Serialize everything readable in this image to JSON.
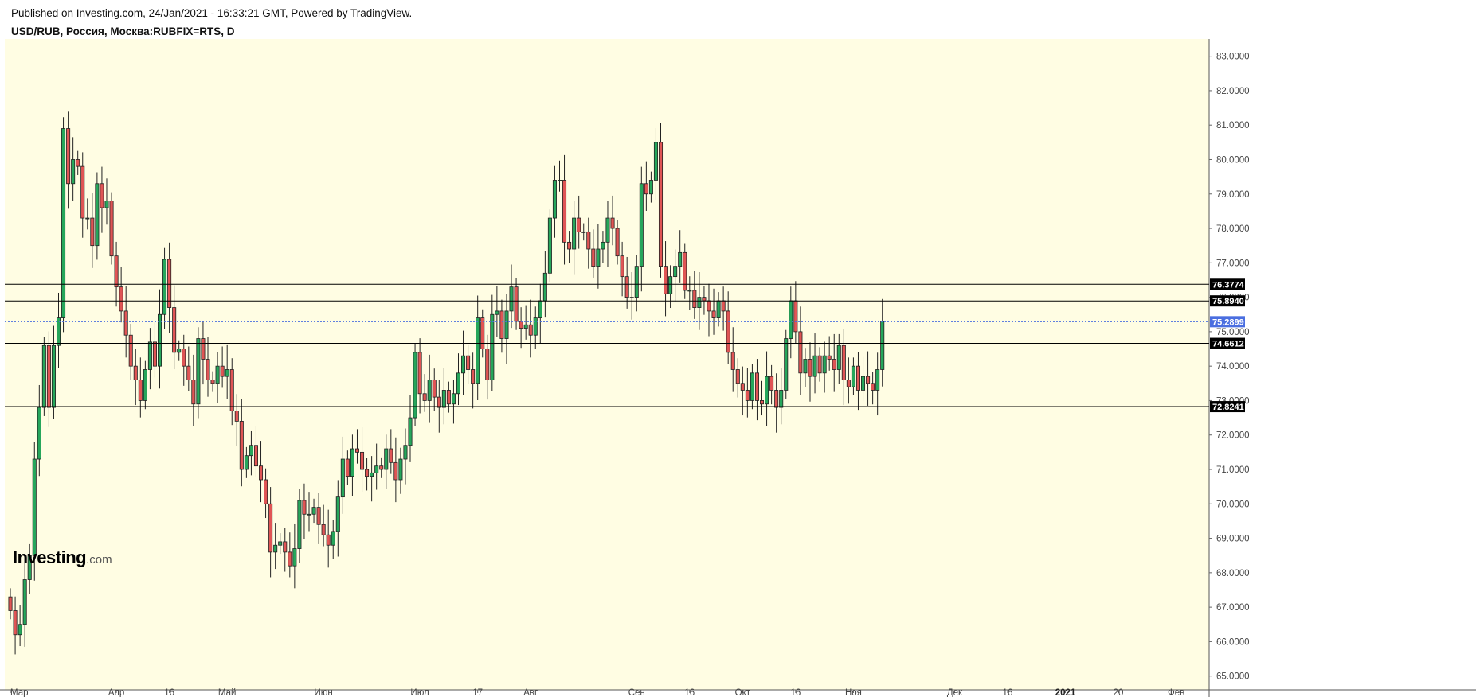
{
  "header": {
    "published": "Published on Investing.com, 24/Jan/2021 - 16:33:21 GMT, Powered by TradingView.",
    "symbol": "USD/RUB, Россия, Москва:RUBFIX=RTS, D"
  },
  "logo": {
    "brand": "Investing",
    "suffix": ".com"
  },
  "chart_data": {
    "type": "candlestick",
    "title": "USD/RUB, Россия, Москва:RUBFIX=RTS, D",
    "ylim": [
      64.6,
      83.5
    ],
    "y_ticks": [
      65,
      66,
      67,
      68,
      69,
      70,
      71,
      72,
      73,
      74,
      75,
      76,
      77,
      78,
      79,
      80,
      81,
      82,
      83
    ],
    "x_ticks": [
      {
        "label": "Мар",
        "index": 0
      },
      {
        "label": "Апр",
        "index": 22
      },
      {
        "label": "16",
        "index": 33
      },
      {
        "label": "Май",
        "index": 45
      },
      {
        "label": "Июн",
        "index": 65
      },
      {
        "label": "Июл",
        "index": 85
      },
      {
        "label": "17",
        "index": 97
      },
      {
        "label": "Авг",
        "index": 108
      },
      {
        "label": "Сен",
        "index": 130
      },
      {
        "label": "16",
        "index": 141
      },
      {
        "label": "Окт",
        "index": 152
      },
      {
        "label": "16",
        "index": 163
      },
      {
        "label": "Ноя",
        "index": 175
      },
      {
        "label": "Дек",
        "index": 196
      },
      {
        "label": "16",
        "index": 207
      },
      {
        "label": "2021",
        "index": 219,
        "bold": true
      },
      {
        "label": "20",
        "index": 230
      },
      {
        "label": "Фев",
        "index": 242
      }
    ],
    "x_slots": 250,
    "horizontal_levels": [
      {
        "value": 76.3774,
        "label": "76.3774",
        "style": "solid"
      },
      {
        "value": 75.894,
        "label": "75.8940",
        "style": "solid"
      },
      {
        "value": 74.6612,
        "label": "74.6612",
        "style": "solid"
      },
      {
        "value": 72.8241,
        "label": "72.8241",
        "style": "solid"
      }
    ],
    "last_price": {
      "value": 75.2899,
      "label": "75.2899"
    },
    "closes": [
      66.9,
      66.2,
      66.5,
      67.8,
      68.5,
      71.3,
      72.8,
      74.6,
      72.8,
      74.6,
      75.4,
      80.9,
      79.3,
      80.0,
      79.8,
      78.3,
      78.3,
      77.5,
      79.3,
      78.6,
      78.8,
      77.2,
      76.3,
      75.6,
      74.9,
      74.0,
      73.6,
      73.0,
      73.9,
      74.7,
      74.0,
      75.5,
      77.1,
      75.7,
      74.4,
      74.5,
      74.0,
      73.6,
      72.9,
      74.8,
      74.2,
      73.6,
      73.5,
      74.0,
      73.7,
      73.9,
      72.7,
      72.4,
      71.0,
      71.4,
      71.7,
      71.1,
      70.7,
      70.0,
      68.6,
      68.8,
      68.9,
      68.6,
      68.2,
      68.7,
      70.1,
      69.7,
      69.7,
      69.9,
      69.4,
      69.1,
      68.8,
      69.2,
      70.2,
      71.3,
      70.8,
      71.6,
      71.5,
      71.0,
      70.8,
      70.9,
      71.1,
      71.0,
      71.6,
      71.2,
      70.7,
      71.3,
      71.7,
      72.5,
      74.4,
      73.2,
      73.0,
      73.6,
      73.1,
      72.8,
      73.3,
      72.9,
      73.2,
      73.8,
      74.3,
      73.9,
      73.5,
      75.4,
      74.5,
      73.6,
      75.5,
      75.6,
      74.8,
      75.6,
      76.3,
      75.3,
      75.1,
      75.2,
      74.9,
      75.4,
      75.9,
      76.7,
      78.3,
      79.4,
      79.4,
      77.6,
      77.4,
      78.3,
      77.9,
      77.9,
      77.4,
      76.9,
      77.4,
      77.6,
      78.3,
      78.0,
      77.2,
      76.6,
      76.0,
      76.0,
      76.9,
      79.3,
      79.0,
      79.4,
      80.5,
      76.9,
      76.1,
      76.6,
      76.9,
      77.3,
      76.2,
      76.2,
      75.7,
      76.0,
      75.9,
      75.6,
      75.4,
      75.9,
      75.6,
      74.4,
      73.9,
      73.5,
      73.3,
      73.0,
      73.8,
      73.0,
      72.9,
      73.7,
      73.3,
      72.8,
      73.3,
      74.8,
      75.9,
      75.0,
      73.8,
      74.2,
      73.7,
      74.3,
      73.8,
      74.3,
      74.2,
      73.9,
      74.6,
      73.6,
      73.4,
      74.0,
      73.3,
      73.7,
      73.5,
      73.3,
      73.9,
      75.3
    ],
    "opens": [
      67.3,
      66.9,
      66.2,
      66.5,
      67.8,
      68.5,
      71.3,
      72.8,
      74.6,
      72.8,
      74.6,
      75.4,
      80.9,
      79.3,
      80.0,
      79.8,
      78.3,
      78.3,
      77.5,
      79.3,
      78.6,
      78.8,
      77.2,
      76.3,
      75.6,
      74.9,
      74.0,
      73.6,
      73.0,
      73.9,
      74.7,
      74.0,
      75.5,
      77.1,
      75.7,
      74.4,
      74.5,
      74.0,
      73.6,
      72.9,
      74.8,
      74.2,
      73.6,
      73.5,
      74.0,
      73.7,
      73.9,
      72.7,
      72.4,
      71.0,
      71.4,
      71.7,
      71.1,
      70.7,
      70.0,
      68.6,
      68.8,
      68.9,
      68.6,
      68.2,
      68.7,
      70.1,
      69.7,
      69.7,
      69.9,
      69.4,
      69.1,
      68.8,
      69.2,
      70.2,
      71.3,
      70.8,
      71.6,
      71.5,
      71.0,
      70.8,
      70.9,
      71.1,
      71.0,
      71.6,
      71.2,
      70.7,
      71.3,
      71.7,
      72.5,
      74.4,
      73.2,
      73.0,
      73.6,
      73.1,
      72.8,
      73.3,
      72.9,
      73.2,
      73.8,
      74.3,
      73.9,
      73.5,
      75.4,
      74.5,
      73.6,
      75.5,
      75.6,
      74.8,
      75.6,
      76.3,
      75.3,
      75.1,
      75.2,
      74.9,
      75.4,
      75.9,
      76.7,
      78.3,
      79.4,
      79.4,
      77.6,
      77.4,
      78.3,
      77.9,
      77.9,
      77.4,
      76.9,
      77.4,
      77.6,
      78.3,
      78.0,
      77.2,
      76.6,
      76.0,
      76.0,
      76.9,
      79.3,
      79.0,
      79.4,
      80.5,
      76.9,
      76.1,
      76.6,
      76.9,
      77.3,
      76.2,
      76.2,
      75.7,
      76.0,
      75.9,
      75.6,
      75.4,
      75.9,
      75.6,
      74.4,
      73.9,
      73.5,
      73.3,
      73.0,
      73.8,
      73.0,
      72.9,
      73.7,
      73.3,
      72.8,
      73.3,
      74.8,
      75.9,
      75.0,
      73.8,
      74.2,
      73.7,
      74.3,
      73.8,
      74.3,
      74.2,
      73.9,
      74.6,
      73.6,
      73.4,
      74.0,
      73.3,
      73.7,
      73.5,
      73.3,
      73.9
    ]
  }
}
